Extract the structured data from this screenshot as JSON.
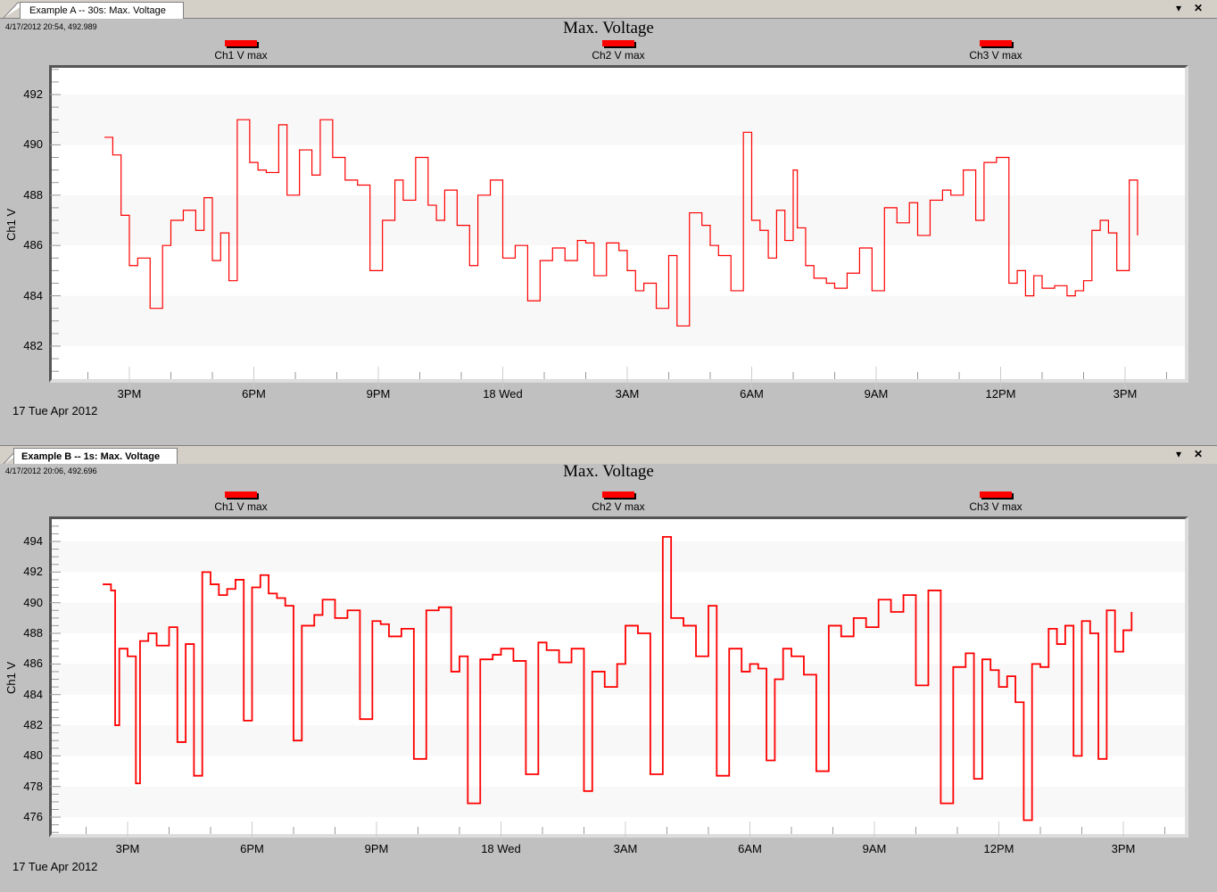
{
  "colors": {
    "series": "#ff0000",
    "band": "#f8f8f8",
    "plot_bg": "#ffffff",
    "panel_bg": "#c0c0c0",
    "tabbar_bg": "#d4d0c8"
  },
  "panels": [
    {
      "tab_label": "Example A -- 30s: Max. Voltage",
      "tab_bold": false,
      "cursor_readout": "4/17/2012 20:54, 492.989",
      "title": "Max. Voltage",
      "legend": [
        "Ch1 V max",
        "Ch2 V max",
        "Ch3 V max"
      ],
      "ylabel": "Ch1 V",
      "yticks": [
        "492",
        "490",
        "488",
        "486",
        "484",
        "482"
      ],
      "xticks": [
        "3PM",
        "6PM",
        "9PM",
        "18 Wed",
        "3AM",
        "6AM",
        "9AM",
        "12PM",
        "3PM"
      ],
      "date_label": "17 Tue Apr 2012",
      "menu_icon": "dropdown-arrow-icon",
      "close_icon": "close-icon"
    },
    {
      "tab_label": "Example B -- 1s: Max. Voltage",
      "tab_bold": true,
      "cursor_readout": "4/17/2012 20:06, 492.696",
      "title": "Max. Voltage",
      "legend": [
        "Ch1 V max",
        "Ch2 V max",
        "Ch3 V max"
      ],
      "ylabel": "Ch1 V",
      "yticks": [
        "494",
        "492",
        "490",
        "488",
        "486",
        "484",
        "482",
        "480",
        "478",
        "476"
      ],
      "xticks": [
        "3PM",
        "6PM",
        "9PM",
        "18 Wed",
        "3AM",
        "6AM",
        "9AM",
        "12PM",
        "3PM"
      ],
      "date_label": "17 Tue Apr 2012",
      "menu_icon": "dropdown-arrow-icon",
      "close_icon": "close-icon"
    }
  ],
  "chart_data": [
    {
      "type": "line",
      "title": "Max. Voltage",
      "subtitle": "Example A -- 30s: Max. Voltage",
      "xlabel": "17 Tue Apr 2012",
      "ylabel": "Ch1 V",
      "ylim": [
        480.7,
        493.1
      ],
      "grid": "alternating horizontal bands every 2 V",
      "legend": [
        "Ch1 V max",
        "Ch2 V max",
        "Ch3 V max"
      ],
      "legend_position": "top",
      "x_ticks": [
        "3PM",
        "6PM",
        "9PM",
        "18 Wed",
        "3AM",
        "6AM",
        "9AM",
        "12PM",
        "3PM"
      ],
      "x_hours_from_3PM": [
        -0.6,
        -0.4,
        -0.2,
        0.0,
        0.2,
        0.5,
        0.8,
        1.0,
        1.3,
        1.6,
        1.8,
        2.0,
        2.2,
        2.4,
        2.6,
        2.9,
        3.1,
        3.3,
        3.6,
        3.8,
        4.1,
        4.4,
        4.6,
        4.9,
        5.2,
        5.5,
        5.8,
        6.1,
        6.4,
        6.6,
        6.9,
        7.2,
        7.4,
        7.6,
        7.9,
        8.2,
        8.4,
        8.7,
        9.0,
        9.3,
        9.6,
        9.9,
        10.2,
        10.5,
        10.8,
        11.0,
        11.2,
        11.5,
        11.8,
        12.0,
        12.2,
        12.4,
        12.7,
        13.0,
        13.2,
        13.5,
        13.8,
        14.0,
        14.2,
        14.5,
        14.8,
        15.0,
        15.2,
        15.4,
        15.6,
        15.8,
        16.0,
        16.1,
        16.3,
        16.5,
        16.8,
        17.0,
        17.3,
        17.6,
        17.9,
        18.2,
        18.5,
        18.8,
        19.0,
        19.3,
        19.6,
        19.8,
        20.1,
        20.4,
        20.6,
        20.9,
        21.2,
        21.4,
        21.6,
        21.8,
        22.0,
        22.3,
        22.6,
        22.8,
        23.0,
        23.2,
        23.4,
        23.6,
        23.8,
        24.1,
        24.3
      ],
      "series": [
        {
          "name": "Ch1 V max",
          "values": [
            490.3,
            489.6,
            487.2,
            485.2,
            485.5,
            483.5,
            486.0,
            487.0,
            487.4,
            486.6,
            487.9,
            485.4,
            486.5,
            484.6,
            491.0,
            489.3,
            489.0,
            488.9,
            490.8,
            488.0,
            489.8,
            488.8,
            491.0,
            489.5,
            488.6,
            488.4,
            485.0,
            487.0,
            488.6,
            487.8,
            489.5,
            487.6,
            487.0,
            488.2,
            486.8,
            485.2,
            488.0,
            488.6,
            485.5,
            486.0,
            483.8,
            485.4,
            485.9,
            485.4,
            486.2,
            486.1,
            484.8,
            486.1,
            485.8,
            485.0,
            484.2,
            484.5,
            483.5,
            485.6,
            482.8,
            487.3,
            486.8,
            486.0,
            485.6,
            484.2,
            490.5,
            487.0,
            486.6,
            485.5,
            487.4,
            486.2,
            489.0,
            486.7,
            485.2,
            484.7,
            484.5,
            484.3,
            484.9,
            485.9,
            484.2,
            487.5,
            486.9,
            487.7,
            486.4,
            487.8,
            488.2,
            488.0,
            489.0,
            487.0,
            489.3,
            489.5,
            484.5,
            485.0,
            484.0,
            484.8,
            484.3,
            484.4,
            484.0,
            484.2,
            484.6,
            486.6,
            487.0,
            486.5,
            485.0,
            488.6,
            486.4
          ]
        },
        {
          "name": "Ch2 V max",
          "values": []
        },
        {
          "name": "Ch3 V max",
          "values": []
        }
      ]
    },
    {
      "type": "line",
      "title": "Max. Voltage",
      "subtitle": "Example B -- 1s: Max. Voltage",
      "xlabel": "17 Tue Apr 2012",
      "ylabel": "Ch1 V",
      "ylim": [
        474.9,
        495.5
      ],
      "grid": "alternating horizontal bands every 2 V",
      "legend": [
        "Ch1 V max",
        "Ch2 V max",
        "Ch3 V max"
      ],
      "legend_position": "top",
      "x_ticks": [
        "3PM",
        "6PM",
        "9PM",
        "18 Wed",
        "3AM",
        "6AM",
        "9AM",
        "12PM",
        "3PM"
      ],
      "x_hours_from_3PM": [
        -0.6,
        -0.4,
        -0.3,
        -0.2,
        0.0,
        0.2,
        0.3,
        0.5,
        0.7,
        1.0,
        1.2,
        1.4,
        1.6,
        1.8,
        2.0,
        2.2,
        2.4,
        2.6,
        2.8,
        3.0,
        3.2,
        3.4,
        3.6,
        3.8,
        4.0,
        4.2,
        4.5,
        4.7,
        5.0,
        5.3,
        5.6,
        5.9,
        6.1,
        6.3,
        6.6,
        6.9,
        7.2,
        7.5,
        7.8,
        8.0,
        8.2,
        8.5,
        8.8,
        9.0,
        9.3,
        9.6,
        9.9,
        10.1,
        10.4,
        10.7,
        11.0,
        11.2,
        11.5,
        11.8,
        12.0,
        12.3,
        12.6,
        12.9,
        13.1,
        13.4,
        13.7,
        14.0,
        14.2,
        14.5,
        14.8,
        15.0,
        15.2,
        15.4,
        15.6,
        15.8,
        16.0,
        16.3,
        16.6,
        16.9,
        17.2,
        17.5,
        17.8,
        18.1,
        18.4,
        18.7,
        19.0,
        19.3,
        19.6,
        19.9,
        20.2,
        20.4,
        20.6,
        20.8,
        21.0,
        21.2,
        21.4,
        21.6,
        21.8,
        22.0,
        22.2,
        22.4,
        22.6,
        22.8,
        23.0,
        23.2,
        23.4,
        23.6,
        23.8,
        24.0,
        24.2
      ],
      "series": [
        {
          "name": "Ch1 V max",
          "values": [
            491.2,
            490.8,
            482.0,
            487.0,
            486.5,
            478.2,
            487.5,
            488.0,
            487.2,
            488.4,
            480.9,
            487.3,
            478.7,
            492.0,
            491.2,
            490.5,
            490.9,
            491.5,
            482.3,
            491.0,
            491.8,
            490.6,
            490.3,
            489.8,
            481.0,
            488.5,
            489.2,
            490.2,
            489.0,
            489.5,
            482.4,
            488.8,
            488.6,
            487.8,
            488.3,
            479.8,
            489.5,
            489.7,
            485.5,
            486.5,
            476.9,
            486.3,
            486.6,
            487.0,
            486.2,
            478.8,
            487.4,
            486.9,
            486.1,
            487.0,
            477.7,
            485.5,
            484.5,
            486.0,
            488.5,
            488.0,
            478.8,
            494.3,
            489.0,
            488.5,
            486.5,
            489.8,
            478.7,
            487.0,
            485.5,
            486.0,
            485.7,
            479.7,
            485.0,
            487.0,
            486.5,
            485.3,
            479.0,
            488.5,
            487.8,
            489.0,
            488.4,
            490.2,
            489.4,
            490.5,
            484.6,
            490.8,
            476.9,
            485.8,
            486.7,
            478.5,
            486.3,
            485.6,
            484.5,
            485.2,
            483.5,
            475.8,
            486.0,
            485.8,
            488.3,
            487.3,
            488.5,
            480.0,
            488.8,
            488.0,
            479.8,
            489.5,
            486.8,
            488.2,
            489.4
          ]
        },
        {
          "name": "Ch2 V max",
          "values": []
        },
        {
          "name": "Ch3 V max",
          "values": []
        }
      ]
    }
  ]
}
